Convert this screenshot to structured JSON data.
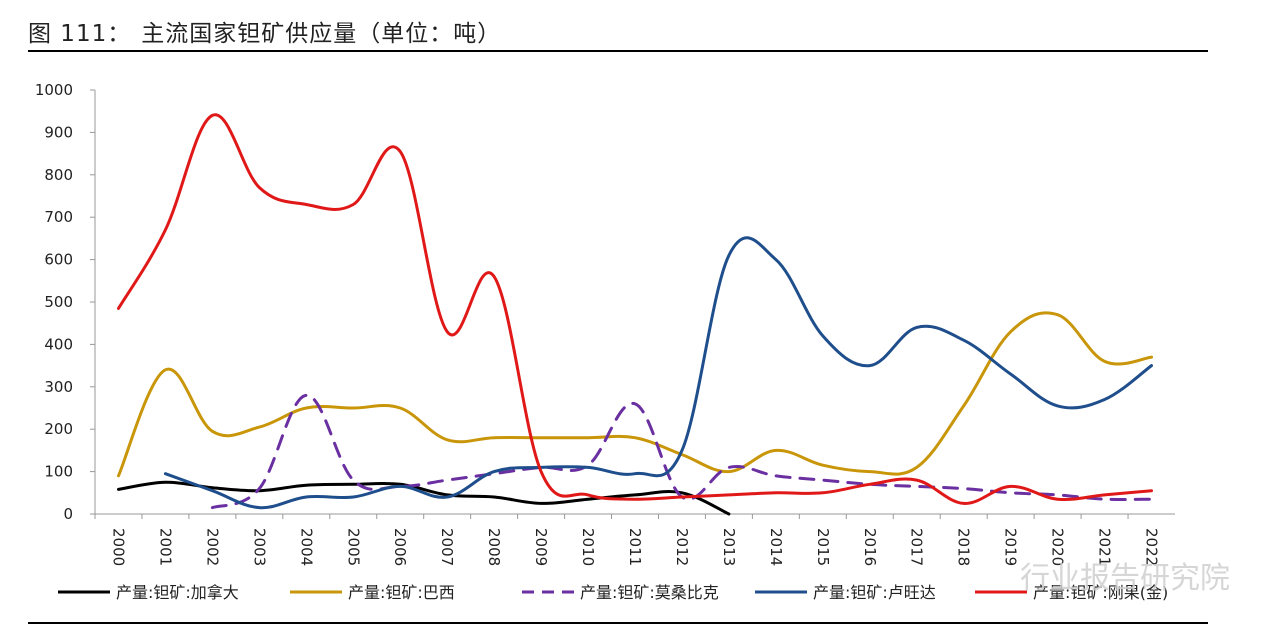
{
  "header": {
    "figure_label": "图 111：",
    "title": "主流国家钽矿供应量（单位：吨）"
  },
  "watermark": {
    "text": "行业报告研究院"
  },
  "chart_data": {
    "type": "line",
    "title": "主流国家钽矿供应量（单位：吨）",
    "xlabel": "",
    "ylabel": "",
    "ylim": [
      0,
      1000
    ],
    "yticks": [
      0,
      100,
      200,
      300,
      400,
      500,
      600,
      700,
      800,
      900,
      1000
    ],
    "x": [
      "2000",
      "2001",
      "2002",
      "2003",
      "2004",
      "2005",
      "2006",
      "2007",
      "2008",
      "2009",
      "2010",
      "2011",
      "2012",
      "2013",
      "2014",
      "2015",
      "2016",
      "2017",
      "2018",
      "2019",
      "2020",
      "2021",
      "2022"
    ],
    "xtick_labels": [
      "2000",
      "2001",
      "2002",
      "2003",
      "2004",
      "2005",
      "2006",
      "2007",
      "2008",
      "2009",
      "2010",
      "2011",
      "2012",
      "2013",
      "2014",
      "2015",
      "2016",
      "2017",
      "2018",
      "2019",
      "2020",
      "2021",
      "2022"
    ],
    "grid": false,
    "legend_position": "bottom",
    "series": [
      {
        "name": "产量:钽矿:加拿大",
        "color": "#000000",
        "dash": "solid",
        "values": [
          58,
          75,
          62,
          55,
          68,
          70,
          70,
          45,
          40,
          25,
          35,
          45,
          50,
          0,
          null,
          null,
          null,
          null,
          null,
          null,
          null,
          null,
          null
        ]
      },
      {
        "name": "产量:钽矿:巴西",
        "color": "#c9960a",
        "dash": "solid",
        "values": [
          90,
          340,
          195,
          205,
          250,
          250,
          250,
          175,
          180,
          180,
          180,
          180,
          140,
          100,
          150,
          115,
          100,
          110,
          255,
          430,
          470,
          360,
          370
        ]
      },
      {
        "name": "产量:钽矿:莫桑比克",
        "color": "#6a2fa0",
        "dash": "dashed",
        "values": [
          null,
          null,
          15,
          60,
          280,
          80,
          65,
          80,
          95,
          110,
          115,
          260,
          40,
          110,
          90,
          80,
          70,
          65,
          60,
          50,
          45,
          35,
          35
        ]
      },
      {
        "name": "产量:钽矿:卢旺达",
        "color": "#1f4e8c",
        "dash": "solid",
        "values": [
          null,
          95,
          55,
          15,
          40,
          40,
          65,
          40,
          100,
          110,
          110,
          95,
          150,
          610,
          600,
          420,
          350,
          440,
          410,
          330,
          255,
          270,
          350
        ]
      },
      {
        "name": "产量:钽矿:刚果(金)",
        "color": "#e01818",
        "dash": "solid",
        "values": [
          485,
          670,
          940,
          770,
          730,
          730,
          855,
          430,
          560,
          100,
          45,
          35,
          40,
          45,
          50,
          50,
          70,
          80,
          25,
          65,
          35,
          45,
          55
        ]
      }
    ]
  }
}
